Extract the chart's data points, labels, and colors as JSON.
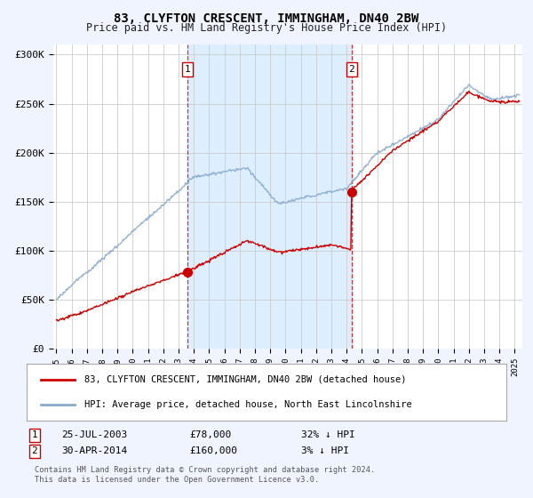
{
  "title": "83, CLYFTON CRESCENT, IMMINGHAM, DN40 2BW",
  "subtitle": "Price paid vs. HM Land Registry's House Price Index (HPI)",
  "red_label": "83, CLYFTON CRESCENT, IMMINGHAM, DN40 2BW (detached house)",
  "blue_label": "HPI: Average price, detached house, North East Lincolnshire",
  "footnote1": "Contains HM Land Registry data © Crown copyright and database right 2024.",
  "footnote2": "This data is licensed under the Open Government Licence v3.0.",
  "transaction1_date": "25-JUL-2003",
  "transaction1_price": "£78,000",
  "transaction1_hpi": "32% ↓ HPI",
  "transaction1_year": 2003.56,
  "transaction1_value": 78000,
  "transaction2_date": "30-APR-2014",
  "transaction2_price": "£160,000",
  "transaction2_hpi": "3% ↓ HPI",
  "transaction2_year": 2014.33,
  "transaction2_value": 160000,
  "ylim": [
    0,
    310000
  ],
  "xlim_start": 1994.8,
  "xlim_end": 2025.5,
  "background_color": "#f0f4ff",
  "plot_bg": "#ffffff",
  "red_color": "#cc0000",
  "blue_color": "#88aacc",
  "shade_color": "#ddeeff",
  "marker1_x": 2003.56,
  "marker2_x": 2014.33
}
